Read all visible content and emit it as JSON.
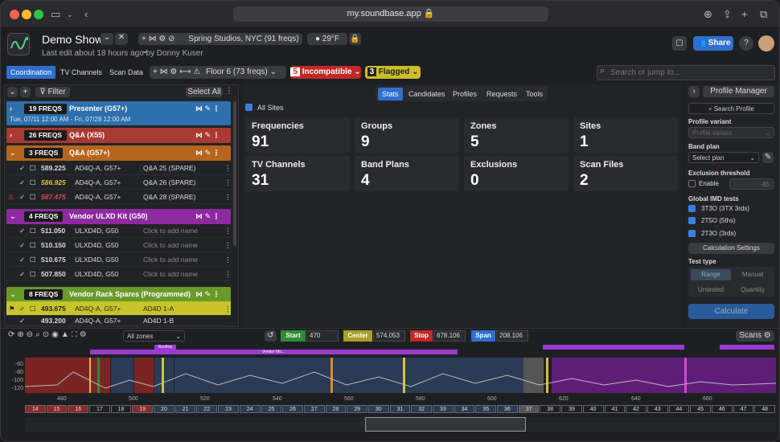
{
  "browser": {
    "url": "my.soundbase.app"
  },
  "app": {
    "title": "Demo Show",
    "subtitle": "Last edit about 18 hours ago by Donny Kuser",
    "venue": "Spring Studios, NYC (91 freqs)",
    "temp": "29°F",
    "share": "Share"
  },
  "tabs": [
    "Coordination",
    "TV Channels",
    "Scan Data"
  ],
  "floor": "Floor 6 (73 freqs)",
  "incompat": {
    "count": "5",
    "label": "Incompatible"
  },
  "flagged": {
    "count": "3",
    "label": "Flagged"
  },
  "search_placeholder": "Search or jump to...",
  "left": {
    "filter": "Filter",
    "select_all": "Select All"
  },
  "groups": [
    {
      "count": "19 FREQS",
      "name": "Presenter (G57+)",
      "sub": "Tue, 07/11 12:00 AM - Fri, 07/28 12:00 AM",
      "color": "#2e6fad"
    },
    {
      "count": "26 FREQS",
      "name": "Q&A (X55)",
      "color": "#a83a32"
    },
    {
      "count": "3 FREQS",
      "name": "Q&A (G57+)",
      "color": "#b5651d"
    },
    {
      "count": "4 FREQS",
      "name": "Vendor ULXD Kit (G50)",
      "color": "#8e2aa0"
    },
    {
      "count": "8 FREQS",
      "name": "Vendor Rack Spares (Programmed)",
      "color": "#6a9a2a"
    }
  ],
  "rows_qa": [
    {
      "f": "589.225",
      "d": "AD4Q-A, G57+",
      "n": "Q&A 25 (SPARE)",
      "s": "ok"
    },
    {
      "f": "586.925",
      "d": "AD4Q-A, G57+",
      "n": "Q&A 26 (SPARE)",
      "s": "warn"
    },
    {
      "f": "587.475",
      "d": "AD4Q-A, G57+",
      "n": "Q&A 28 (SPARE)",
      "s": "err"
    }
  ],
  "rows_vendor": [
    {
      "f": "511.050",
      "d": "ULXD4D, G50",
      "n": "Click to add name"
    },
    {
      "f": "510.150",
      "d": "ULXD4D, G50",
      "n": "Click to add name"
    },
    {
      "f": "510.675",
      "d": "ULXD4D, G50",
      "n": "Click to add name"
    },
    {
      "f": "507.850",
      "d": "ULXD4D, G50",
      "n": "Click to add name"
    }
  ],
  "rows_spare": [
    {
      "f": "493.675",
      "d": "AD4Q-A, G57+",
      "n": "AD4D 1-A"
    },
    {
      "f": "493.200",
      "d": "AD4Q-A, G57+",
      "n": "AD4D 1-B"
    }
  ],
  "center": {
    "tabs": [
      "Stats",
      "Candidates",
      "Profiles",
      "Requests",
      "Tools"
    ],
    "all_sites": "All Sites",
    "stats": [
      {
        "l": "Frequencies",
        "v": "91"
      },
      {
        "l": "Groups",
        "v": "9"
      },
      {
        "l": "Zones",
        "v": "5"
      },
      {
        "l": "Sites",
        "v": "1"
      },
      {
        "l": "TV Channels",
        "v": "31"
      },
      {
        "l": "Band Plans",
        "v": "4"
      },
      {
        "l": "Exclusions",
        "v": "0"
      },
      {
        "l": "Scan Files",
        "v": "2"
      }
    ]
  },
  "right": {
    "profile_manager": "Profile Manager",
    "search_profile": "Search Profile",
    "profile_variant": "Profile variant",
    "profile_variant_ph": "Profile variant",
    "band_plan": "Band plan",
    "select_plan": "Select plan",
    "excl": "Exclusion threshold",
    "enable": "Enable",
    "excl_val": "-85",
    "imd": "Global IMD tests",
    "tests": [
      "3T3O (3TX 3rds)",
      "2T5O (5ths)",
      "2T3O (3rds)"
    ],
    "calc_settings": "Calculation Settings",
    "test_type": "Test type",
    "types": [
      "Range",
      "Manual",
      "Untested",
      "Quantity"
    ],
    "calculate": "Calculate"
  },
  "spectrum": {
    "zones": "All zones",
    "start_l": "Start",
    "start": "470",
    "center_l": "Center",
    "center": "574.053",
    "stop_l": "Stop",
    "stop": "678.106",
    "span_l": "Span",
    "span": "208.106",
    "scans": "Scans",
    "ylabels": [
      "-60",
      "-80",
      "-100",
      "-120"
    ],
    "xlabels": [
      "480",
      "500",
      "520",
      "540",
      "560",
      "580",
      "600",
      "620",
      "640",
      "660"
    ],
    "rooftop": "Rooftop",
    "vendor": "Vendor Mic...",
    "channels": [
      "14",
      "15",
      "16",
      "17",
      "18",
      "19",
      "20",
      "21",
      "22",
      "23",
      "24",
      "25",
      "26",
      "27",
      "28",
      "29",
      "30",
      "31",
      "32",
      "33",
      "34",
      "35",
      "36",
      "37",
      "38",
      "39",
      "40",
      "41",
      "42",
      "43",
      "44",
      "45",
      "46",
      "47",
      "48"
    ]
  }
}
